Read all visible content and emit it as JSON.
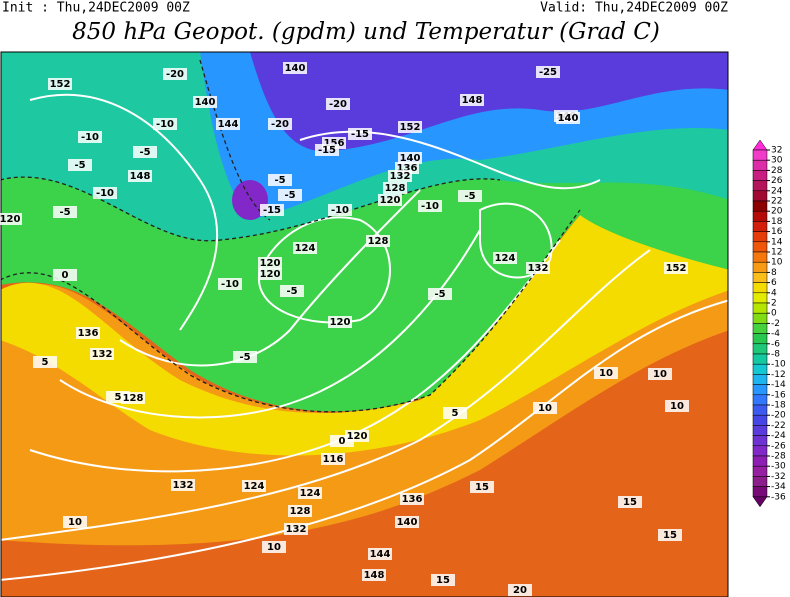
{
  "header": {
    "init": "Init : Thu,24DEC2009 00Z",
    "valid": "Valid: Thu,24DEC2009 00Z",
    "title": "850 hPa Geopot. (gpdm) und Temperatur (Grad C)"
  },
  "colorbar": {
    "ticks": [
      32,
      30,
      28,
      26,
      24,
      22,
      20,
      18,
      16,
      14,
      12,
      10,
      8,
      6,
      4,
      2,
      0,
      -2,
      -4,
      -6,
      -8,
      -10,
      -12,
      -14,
      -16,
      -18,
      -20,
      -22,
      -24,
      -26,
      -28,
      -30,
      -32,
      -34,
      -36
    ],
    "colors": [
      "#ff2bd9",
      "#f03cc8",
      "#dc2ca8",
      "#c81e82",
      "#b4145a",
      "#a00a32",
      "#8c0000",
      "#b40a0a",
      "#d21e0a",
      "#e63c0a",
      "#f0560a",
      "#f5780f",
      "#f99a14",
      "#fbbd19",
      "#f5dc00",
      "#e1ec00",
      "#b4e600",
      "#82dc14",
      "#46d23c",
      "#28c850",
      "#1ec878",
      "#14c8a0",
      "#14c8d2",
      "#1eb4f0",
      "#2896ff",
      "#3278ff",
      "#3c5af0",
      "#4646e6",
      "#5a3cdc",
      "#6e32d2",
      "#8228c8",
      "#8c1eb4",
      "#961ea0",
      "#8c1e8c",
      "#780a78",
      "#640064"
    ]
  },
  "contour_labels": [
    "152",
    "140",
    "140",
    "144",
    "-20",
    "-20",
    "148",
    "140",
    "-25",
    "152",
    "-10",
    "-10",
    "-5",
    "148",
    "-10",
    "-5",
    "-20",
    "156",
    "-15",
    "-15",
    "140",
    "136",
    "-5",
    "132",
    "128",
    "120",
    "-15",
    "-10",
    "-5",
    "-10",
    "-5",
    "120",
    "124",
    "-5",
    "-10",
    "128",
    "132",
    "124",
    "-5",
    "152",
    "140",
    "120",
    "120",
    "-5",
    "-5",
    "0",
    "120",
    "0",
    "5",
    "136",
    "132",
    "5",
    "128",
    "120",
    "116",
    "124",
    "124",
    "128",
    "132",
    "136",
    "140",
    "144",
    "148",
    "132",
    "10",
    "10",
    "5",
    "10",
    "15",
    "15",
    "15",
    "15",
    "10",
    "10",
    "10",
    "20"
  ]
}
